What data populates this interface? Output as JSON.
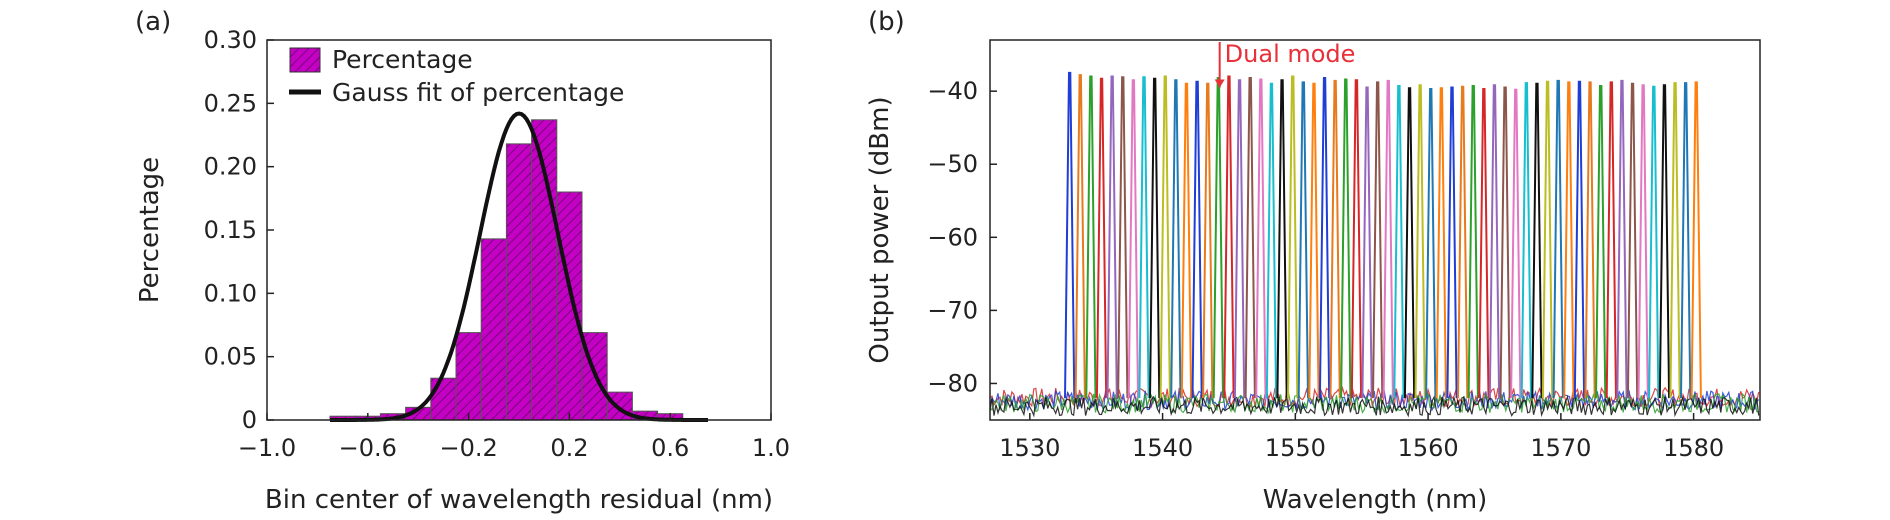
{
  "panels": {
    "a": {
      "label": "(a)"
    },
    "b": {
      "label": "(b)"
    }
  },
  "chart_data": [
    {
      "type": "bar",
      "panel": "(a)",
      "xlabel": "Bin center of wavelength residual (nm)",
      "ylabel": "Percentage",
      "xlim": [
        -1.0,
        1.0
      ],
      "ylim": [
        0,
        0.3
      ],
      "xticks": [
        "−1.0",
        "−0.6",
        "−0.2",
        "0.2",
        "0.6",
        "1.0"
      ],
      "xtick_values": [
        -1.0,
        -0.6,
        -0.2,
        0.2,
        0.6,
        1.0
      ],
      "yticks": [
        "0",
        "0.05",
        "0.10",
        "0.15",
        "0.20",
        "0.25",
        "0.30"
      ],
      "ytick_values": [
        0,
        0.05,
        0.1,
        0.15,
        0.2,
        0.25,
        0.3
      ],
      "bin_width": 0.1,
      "bin_centers": [
        -0.7,
        -0.6,
        -0.5,
        -0.4,
        -0.3,
        -0.2,
        -0.1,
        0.0,
        0.1,
        0.2,
        0.3,
        0.4,
        0.5,
        0.6
      ],
      "values": [
        0.003,
        0.003,
        0.005,
        0.01,
        0.033,
        0.069,
        0.143,
        0.218,
        0.237,
        0.18,
        0.069,
        0.022,
        0.007,
        0.005
      ],
      "series": [
        {
          "name": "Percentage",
          "kind": "hatched bar",
          "color": "#c800c8"
        },
        {
          "name": "Gauss fit of percentage",
          "kind": "line",
          "color": "#111111",
          "amplitude": 0.242,
          "center": 0.0,
          "sigma": 0.155
        }
      ],
      "legend_position": "top-left",
      "grid": false
    },
    {
      "type": "line",
      "panel": "(b)",
      "xlabel": "Wavelength (nm)",
      "ylabel": "Output power (dBm)",
      "xlim": [
        1527,
        1585
      ],
      "ylim": [
        -85,
        -33
      ],
      "xticks": [
        "1530",
        "1540",
        "1550",
        "1560",
        "1570",
        "1580"
      ],
      "xtick_values": [
        1530,
        1540,
        1550,
        1560,
        1570,
        1580
      ],
      "yticks": [
        "−80",
        "−70",
        "−60",
        "−50",
        "−40"
      ],
      "ytick_values": [
        -80,
        -70,
        -60,
        -50,
        -40
      ],
      "noise_floor": -82,
      "peak_wavelengths": [
        1533.0,
        1533.8,
        1534.6,
        1535.4,
        1536.2,
        1537.0,
        1537.8,
        1538.6,
        1539.4,
        1540.2,
        1541.0,
        1541.8,
        1542.6,
        1543.4,
        1544.2,
        1545.0,
        1545.8,
        1546.6,
        1547.4,
        1548.2,
        1549.0,
        1549.8,
        1550.6,
        1551.4,
        1552.2,
        1553.0,
        1553.8,
        1554.6,
        1555.4,
        1556.2,
        1557.0,
        1557.8,
        1558.6,
        1559.4,
        1560.2,
        1561.0,
        1561.8,
        1562.6,
        1563.4,
        1564.2,
        1565.0,
        1565.8,
        1566.6,
        1567.4,
        1568.2,
        1569.0,
        1569.8,
        1570.6,
        1571.4,
        1572.2,
        1573.0,
        1573.8,
        1574.6,
        1575.4,
        1576.2,
        1577.0,
        1577.8,
        1578.6,
        1579.4,
        1580.2
      ],
      "peak_powers": [
        -37.5,
        -37.8,
        -38.0,
        -38.3,
        -38.0,
        -38.1,
        -38.5,
        -38.1,
        -38.3,
        -38.0,
        -38.5,
        -39.0,
        -38.7,
        -39.0,
        -38.2,
        -38.0,
        -38.5,
        -38.2,
        -38.4,
        -39.0,
        -38.5,
        -38.0,
        -38.8,
        -39.0,
        -38.2,
        -38.6,
        -38.4,
        -38.5,
        -39.5,
        -38.8,
        -38.6,
        -39.3,
        -39.6,
        -39.2,
        -39.7,
        -39.6,
        -39.5,
        -39.4,
        -39.3,
        -39.7,
        -39.2,
        -39.5,
        -39.8,
        -38.9,
        -39.0,
        -38.7,
        -38.6,
        -38.8,
        -38.7,
        -38.8,
        -39.3,
        -38.8,
        -38.6,
        -39.0,
        -39.2,
        -39.4,
        -39.2,
        -38.9,
        -38.9,
        -38.8
      ],
      "colors": [
        "#1f3ed6",
        "#e87a1e",
        "#2ba02b",
        "#d62728",
        "#9467bd",
        "#8c564b",
        "#e377c2",
        "#17becf",
        "#111111",
        "#bcbd22",
        "#1f77b4",
        "#ff7f0e"
      ],
      "annotations": [
        {
          "text": "Dual mode",
          "color": "#e8303a",
          "x": 1544.3,
          "y": -36
        }
      ],
      "grid": false
    }
  ]
}
